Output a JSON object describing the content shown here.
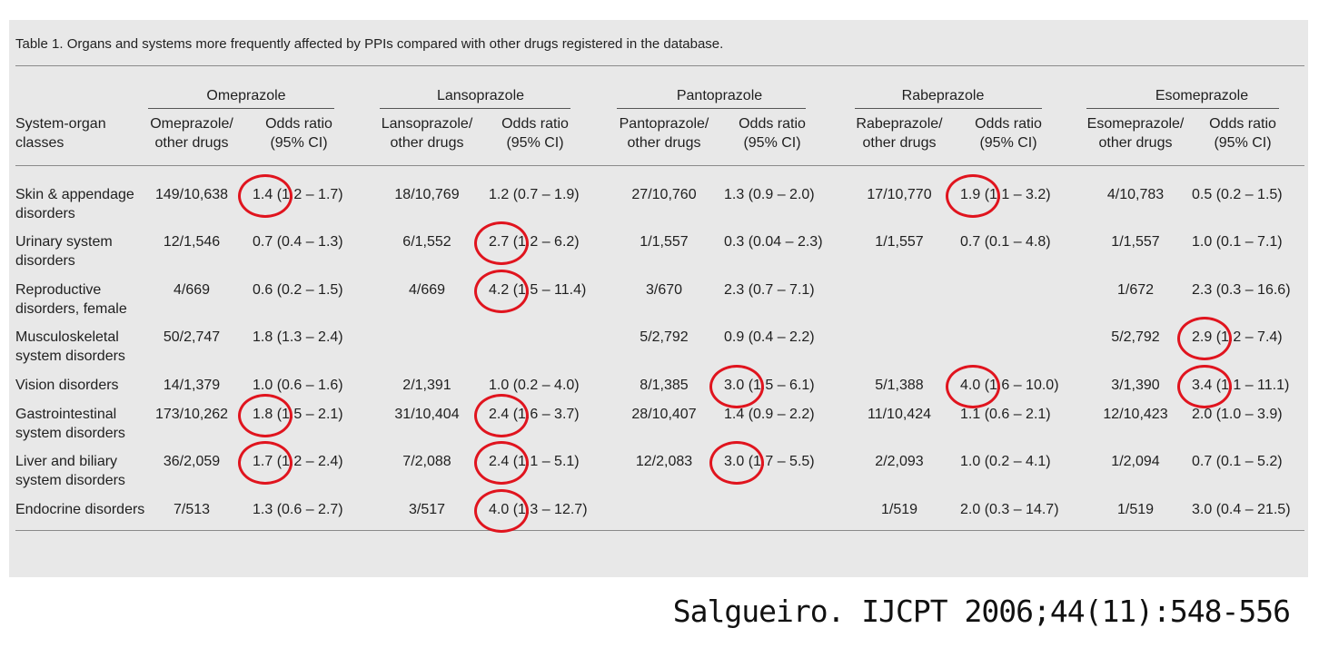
{
  "caption": "Table 1.   Organs and systems more frequently affected by PPIs compared with other drugs registered in the database.",
  "row_header": [
    "System-organ",
    "classes"
  ],
  "groups": [
    {
      "name": "Omeprazole",
      "col1": [
        "Omeprazole/",
        "other drugs"
      ],
      "col2": [
        "Odds ratio",
        "(95% CI)"
      ]
    },
    {
      "name": "Lansoprazole",
      "col1": [
        "Lansoprazole/",
        "other drugs"
      ],
      "col2": [
        "Odds ratio",
        "(95% CI)"
      ]
    },
    {
      "name": "Pantoprazole",
      "col1": [
        "Pantoprazole/",
        "other drugs"
      ],
      "col2": [
        "Odds ratio",
        "(95% CI)"
      ]
    },
    {
      "name": "Rabeprazole",
      "col1": [
        "Rabeprazole/",
        "other drugs"
      ],
      "col2": [
        "Odds ratio",
        "(95% CI)"
      ]
    },
    {
      "name": "Esomeprazole",
      "col1": [
        "Esomeprazole/",
        "other drugs"
      ],
      "col2": [
        "Odds ratio",
        "(95% CI)"
      ]
    }
  ],
  "rows": [
    {
      "label": [
        "Skin & appendage",
        "disorders"
      ],
      "cells": [
        "149/10,638",
        "1.4 (1.2 – 1.7)",
        "18/10,769",
        "1.2 (0.7 – 1.9)",
        "27/10,760",
        "1.3 (0.9 – 2.0)",
        "17/10,770",
        "1.9 (1.1 – 3.2)",
        "4/10,783",
        "0.5 (0.2 – 1.5)"
      ]
    },
    {
      "label": [
        "Urinary system",
        "disorders"
      ],
      "cells": [
        "12/1,546",
        "0.7 (0.4 – 1.3)",
        "6/1,552",
        "2.7 (1.2 – 6.2)",
        "1/1,557",
        "0.3 (0.04 – 2.3)",
        "1/1,557",
        "0.7 (0.1 – 4.8)",
        "1/1,557",
        "1.0 (0.1 – 7.1)"
      ]
    },
    {
      "label": [
        "Reproductive",
        "disorders, female"
      ],
      "cells": [
        "4/669",
        "0.6 (0.2 – 1.5)",
        "4/669",
        "4.2 (1.5 – 11.4)",
        "3/670",
        "2.3 (0.7 – 7.1)",
        "",
        "",
        "1/672",
        "2.3 (0.3 – 16.6)"
      ]
    },
    {
      "label": [
        "Musculoskeletal",
        "system disorders"
      ],
      "cells": [
        "50/2,747",
        "1.8 (1.3 – 2.4)",
        "",
        "",
        "5/2,792",
        "0.9 (0.4 – 2.2)",
        "",
        "",
        "5/2,792",
        "2.9 (1.2 – 7.4)"
      ]
    },
    {
      "label": [
        "Vision disorders",
        ""
      ],
      "cells": [
        "14/1,379",
        "1.0 (0.6 – 1.6)",
        "2/1,391",
        "1.0 (0.2 – 4.0)",
        "8/1,385",
        "3.0 (1.5 – 6.1)",
        "5/1,388",
        "4.0 (1.6 – 10.0)",
        "3/1,390",
        "3.4 (1.1 – 11.1)"
      ]
    },
    {
      "label": [
        "Gastrointestinal",
        "system disorders"
      ],
      "cells": [
        "173/10,262",
        "1.8 (1.5 – 2.1)",
        "31/10,404",
        "2.4 (1.6 – 3.7)",
        "28/10,407",
        "1.4 (0.9 – 2.2)",
        "11/10,424",
        "1.1 (0.6 – 2.1)",
        "12/10,423",
        "2.0 (1.0 – 3.9)"
      ]
    },
    {
      "label": [
        "Liver and biliary",
        "system disorders"
      ],
      "cells": [
        "36/2,059",
        "1.7 (1.2 – 2.4)",
        "7/2,088",
        "2.4 (1.1 – 5.1)",
        "12/2,083",
        "3.0 (1.7 – 5.5)",
        "2/2,093",
        "1.0 (0.2 – 4.1)",
        "1/2,094",
        "0.7 (0.1 – 5.2)"
      ]
    },
    {
      "label": [
        "Endocrine disorders",
        ""
      ],
      "cells": [
        "7/513",
        "1.3 (0.6 – 2.7)",
        "3/517",
        "4.0 (1.3 – 12.7)",
        "",
        "",
        "1/519",
        "2.0 (0.3 – 14.7)",
        "1/519",
        "3.0 (0.4 – 21.5)"
      ]
    }
  ],
  "highlights": [
    [
      0,
      1
    ],
    [
      0,
      7
    ],
    [
      1,
      3
    ],
    [
      2,
      3
    ],
    [
      3,
      9
    ],
    [
      4,
      5
    ],
    [
      4,
      7
    ],
    [
      4,
      9
    ],
    [
      5,
      1
    ],
    [
      5,
      3
    ],
    [
      6,
      1
    ],
    [
      6,
      3
    ],
    [
      6,
      5
    ],
    [
      7,
      3
    ]
  ],
  "highlight_color": "#e0141e",
  "citation": "Salgueiro. IJCPT 2006;44(11):548-556"
}
